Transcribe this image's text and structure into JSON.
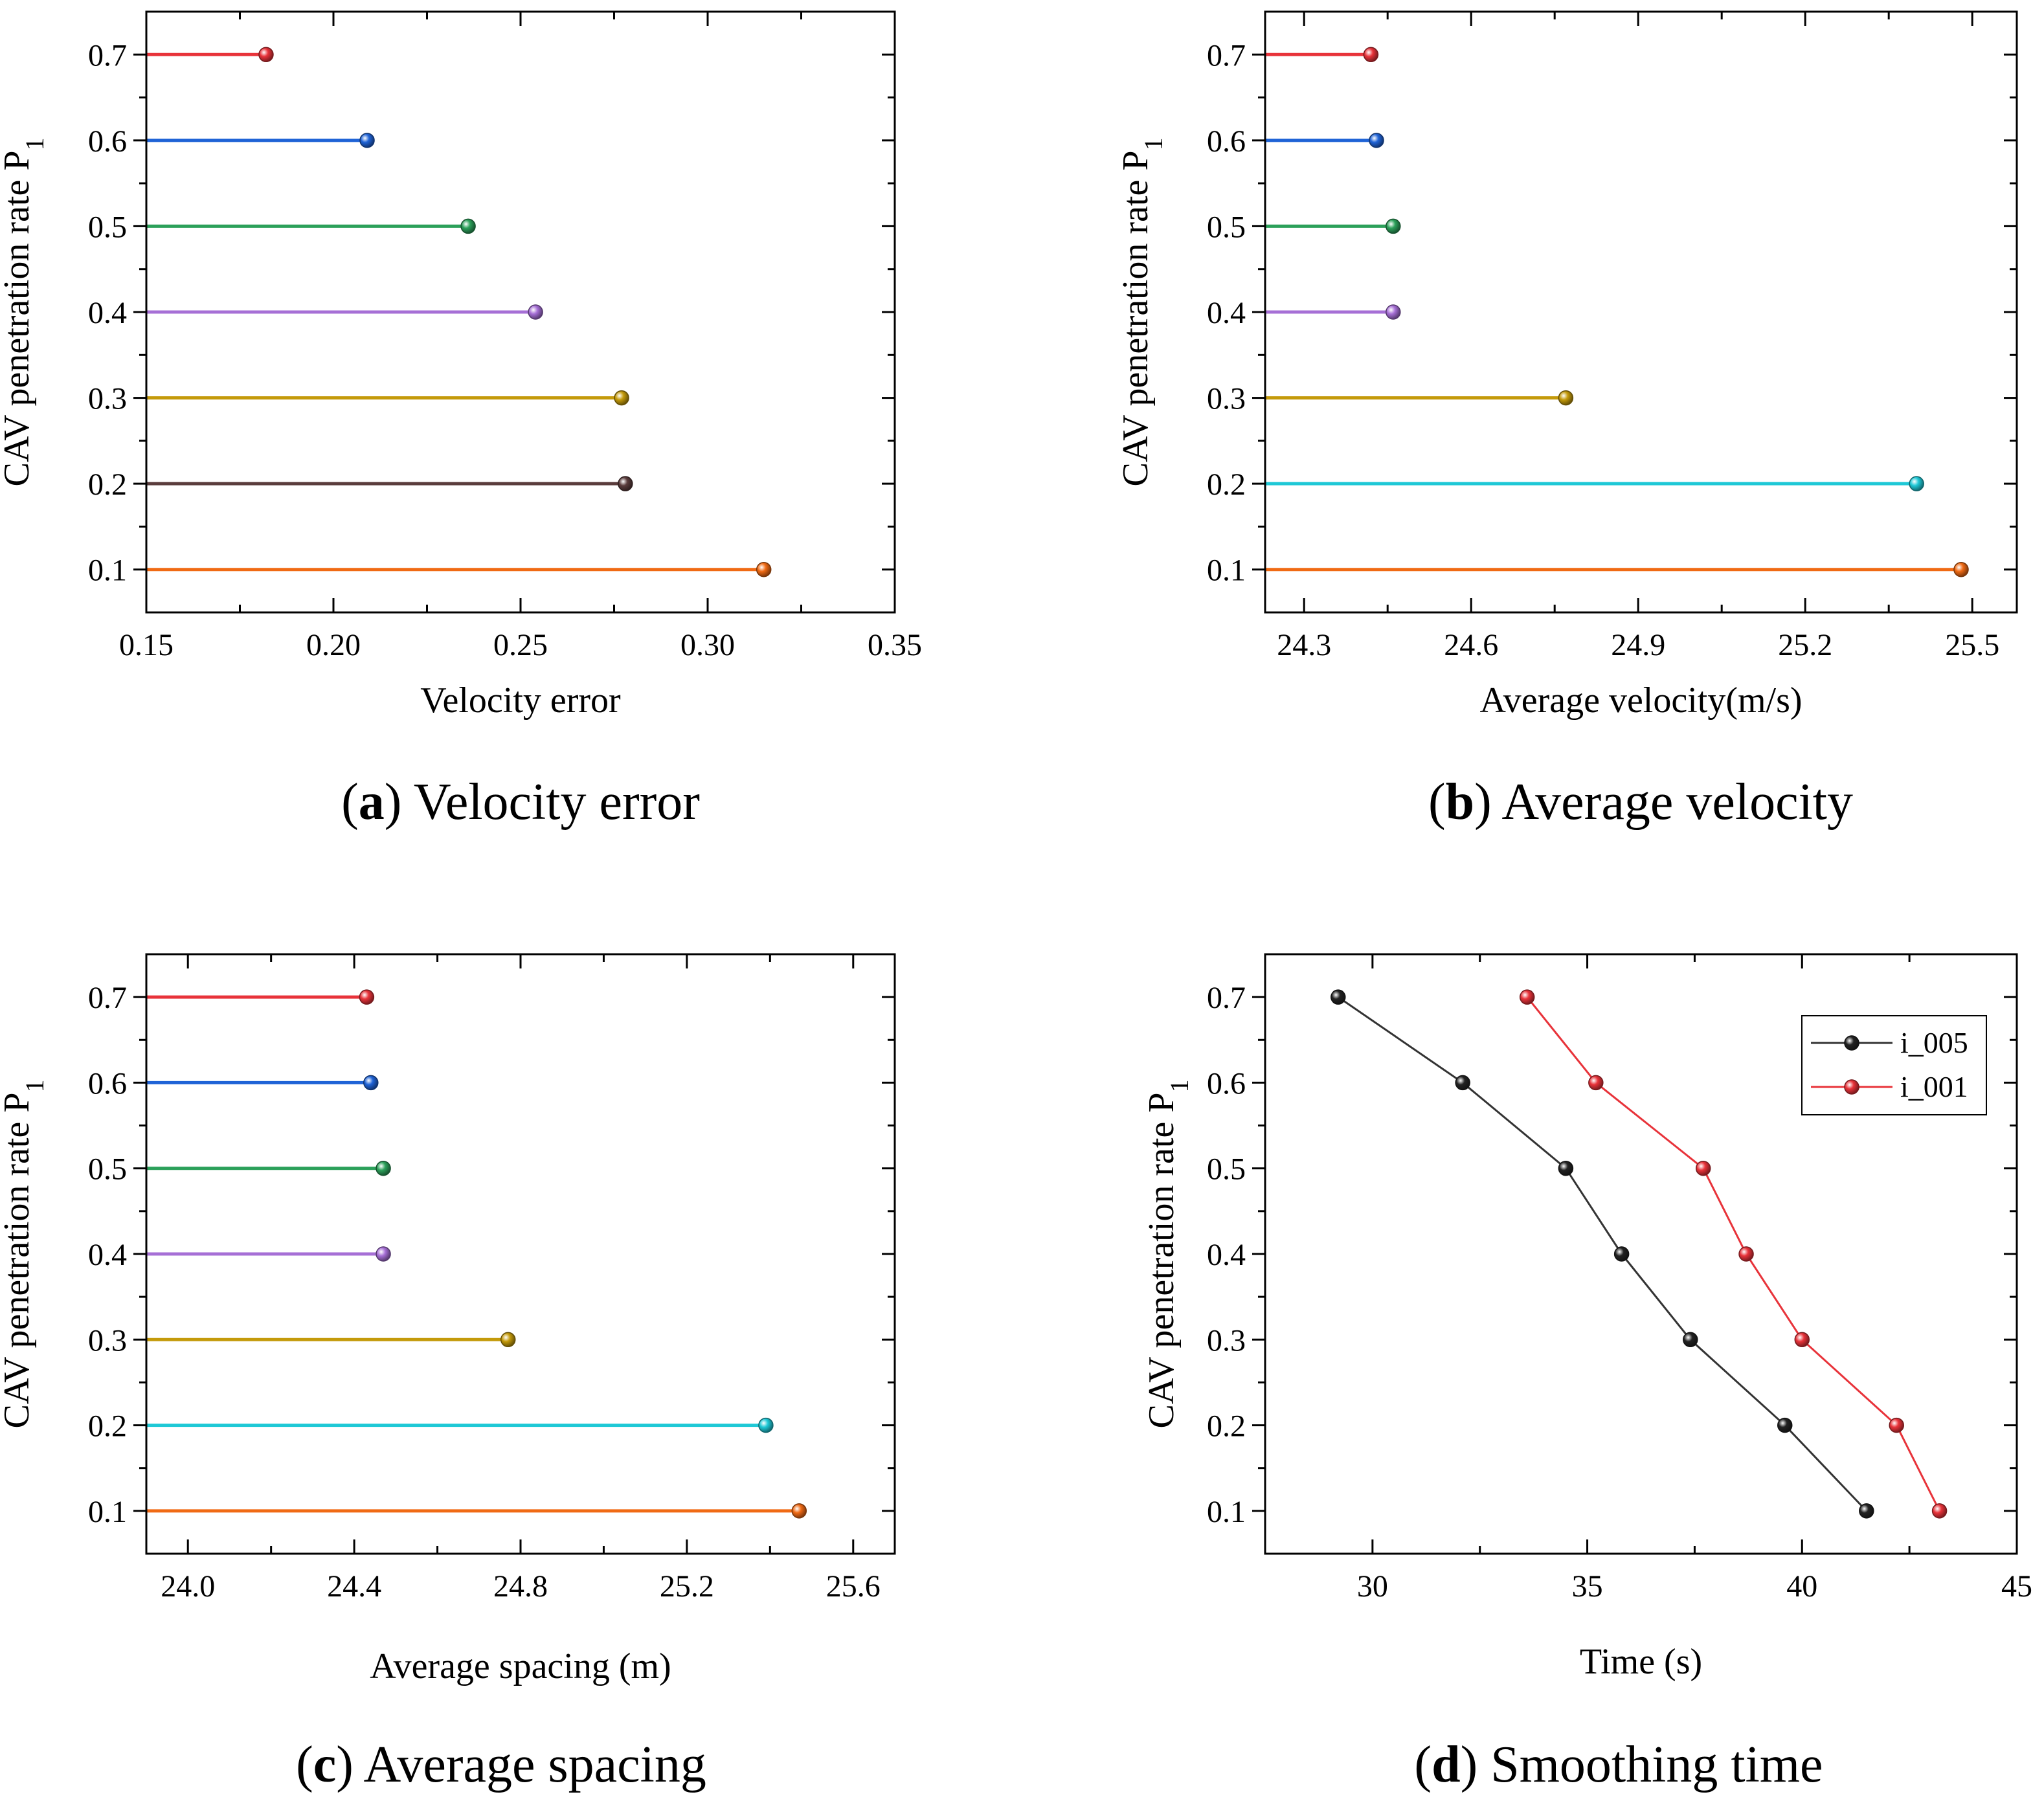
{
  "chart_data": [
    {
      "id": "a",
      "type": "lollipop",
      "caption_letter": "a",
      "caption_text": "Velocity error",
      "xlabel": "Velocity error",
      "ylabel": "CAV penetration rate P",
      "ylabel_sub": "1",
      "xlim": [
        0.15,
        0.35
      ],
      "ylim": [
        0.05,
        0.75
      ],
      "xticks": [
        "0.15",
        "0.20",
        "0.25",
        "0.30",
        "0.35"
      ],
      "yticks": [
        "0.1",
        "0.2",
        "0.3",
        "0.4",
        "0.5",
        "0.6",
        "0.7"
      ],
      "points": [
        {
          "y": 0.7,
          "value": 0.182,
          "color": "#e8333a"
        },
        {
          "y": 0.6,
          "value": 0.209,
          "color": "#1f63d6"
        },
        {
          "y": 0.5,
          "value": 0.236,
          "color": "#2ca05a"
        },
        {
          "y": 0.4,
          "value": 0.254,
          "color": "#a66fd6"
        },
        {
          "y": 0.3,
          "value": 0.277,
          "color": "#c49a0a"
        },
        {
          "y": 0.2,
          "value": 0.278,
          "color": "#5a3c3c"
        },
        {
          "y": 0.1,
          "value": 0.315,
          "color": "#f06a14"
        }
      ]
    },
    {
      "id": "b",
      "type": "lollipop",
      "caption_letter": "b",
      "caption_text": "Average velocity",
      "xlabel": "Average velocity(m/s)",
      "ylabel": "CAV penetration rate P",
      "ylabel_sub": "1",
      "xlim": [
        24.23,
        25.58
      ],
      "ylim": [
        0.05,
        0.75
      ],
      "xticks": [
        "24.3",
        "24.6",
        "24.9",
        "25.2",
        "25.5"
      ],
      "yticks": [
        "0.1",
        "0.2",
        "0.3",
        "0.4",
        "0.5",
        "0.6",
        "0.7"
      ],
      "points": [
        {
          "y": 0.7,
          "value": 24.42,
          "color": "#e8333a"
        },
        {
          "y": 0.6,
          "value": 24.43,
          "color": "#1f63d6"
        },
        {
          "y": 0.5,
          "value": 24.46,
          "color": "#2ca05a"
        },
        {
          "y": 0.4,
          "value": 24.46,
          "color": "#a66fd6"
        },
        {
          "y": 0.3,
          "value": 24.77,
          "color": "#c49a0a"
        },
        {
          "y": 0.2,
          "value": 25.4,
          "color": "#1ec8d6"
        },
        {
          "y": 0.1,
          "value": 25.48,
          "color": "#f06a14"
        }
      ]
    },
    {
      "id": "c",
      "type": "lollipop",
      "caption_letter": "c",
      "caption_text": "Average spacing",
      "xlabel": "Average spacing (m)",
      "ylabel": "CAV penetration rate P",
      "ylabel_sub": "1",
      "xlim": [
        23.9,
        25.7
      ],
      "ylim": [
        0.05,
        0.75
      ],
      "xticks": [
        "24.0",
        "24.4",
        "24.8",
        "25.2",
        "25.6"
      ],
      "yticks": [
        "0.1",
        "0.2",
        "0.3",
        "0.4",
        "0.5",
        "0.6",
        "0.7"
      ],
      "points": [
        {
          "y": 0.7,
          "value": 24.43,
          "color": "#e8333a"
        },
        {
          "y": 0.6,
          "value": 24.44,
          "color": "#1f63d6"
        },
        {
          "y": 0.5,
          "value": 24.47,
          "color": "#2ca05a"
        },
        {
          "y": 0.4,
          "value": 24.47,
          "color": "#a66fd6"
        },
        {
          "y": 0.3,
          "value": 24.77,
          "color": "#c49a0a"
        },
        {
          "y": 0.2,
          "value": 25.39,
          "color": "#1ec8d6"
        },
        {
          "y": 0.1,
          "value": 25.47,
          "color": "#f06a14"
        }
      ]
    },
    {
      "id": "d",
      "type": "line",
      "caption_letter": "d",
      "caption_text": "Smoothing time",
      "xlabel": "Time (s)",
      "ylabel": "CAV penetration rate P",
      "ylabel_sub": "1",
      "xlim": [
        27.5,
        45
      ],
      "ylim": [
        0.05,
        0.75
      ],
      "xticks": [
        "30",
        "35",
        "40",
        "45"
      ],
      "yticks": [
        "0.1",
        "0.2",
        "0.3",
        "0.4",
        "0.5",
        "0.6",
        "0.7"
      ],
      "legend_position": "top-right",
      "series": [
        {
          "name": "i_005",
          "color": "#222222",
          "line_color": "#333333",
          "x": [
            29.2,
            32.1,
            34.5,
            35.8,
            37.4,
            39.6,
            41.5
          ],
          "y": [
            0.7,
            0.6,
            0.5,
            0.4,
            0.3,
            0.2,
            0.1
          ]
        },
        {
          "name": "i_001",
          "color": "#e8333a",
          "line_color": "#e8333a",
          "x": [
            33.6,
            35.2,
            37.7,
            38.7,
            40.0,
            42.2,
            43.2
          ],
          "y": [
            0.7,
            0.6,
            0.5,
            0.4,
            0.3,
            0.2,
            0.1
          ]
        }
      ]
    }
  ]
}
